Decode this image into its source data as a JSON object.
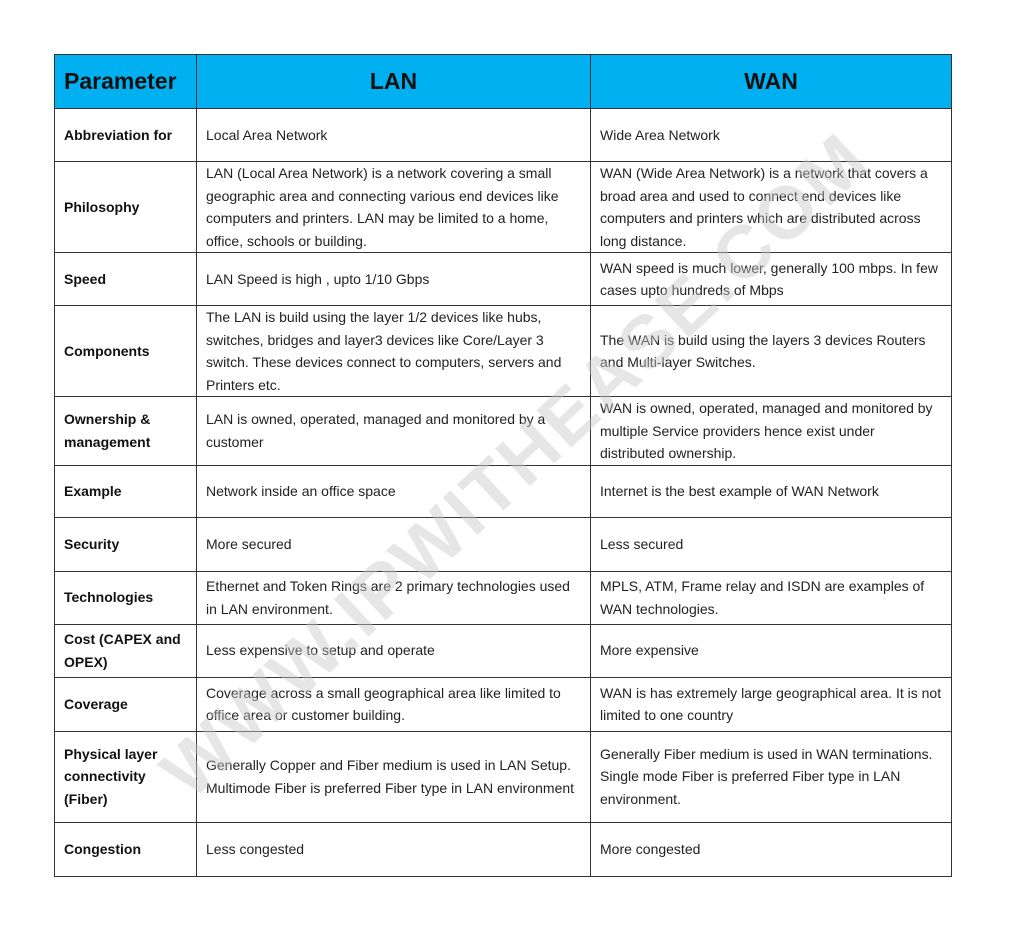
{
  "watermark": "WWW.IPWITHEASE.COM",
  "header": {
    "col0": "Parameter",
    "col1": "LAN",
    "col2": "WAN"
  },
  "colors": {
    "header_bg": "#00b0f0",
    "border": "#333333"
  },
  "rows": [
    {
      "param": "Abbreviation for",
      "lan": "Local Area Network",
      "wan": "Wide Area Network"
    },
    {
      "param": "Philosophy",
      "lan": "LAN (Local Area Network) is a network covering a small geographic area and connecting various end devices like computers and printers. LAN may be limited to a home, office, schools or building.",
      "wan": "WAN (Wide Area Network) is a network that covers a broad area and used to connect end devices like computers and printers which are distributed across long distance."
    },
    {
      "param": "Speed",
      "lan": "LAN Speed is high , upto 1/10 Gbps",
      "wan": "WAN speed is much lower, generally 100 mbps. In few cases upto hundreds of Mbps"
    },
    {
      "param": "Components",
      "lan": "The LAN is build using the layer 1/2 devices like hubs, switches, bridges and layer3 devices like Core/Layer 3 switch. These devices connect to computers, servers and Printers etc.",
      "wan": "The WAN is build using the layers 3 devices Routers and Multi-layer Switches."
    },
    {
      "param": "Ownership & management",
      "lan": "LAN is owned, operated, managed and monitored by a customer",
      "wan": "WAN is owned, operated, managed and monitored by multiple Service providers hence exist under distributed ownership."
    },
    {
      "param": "Example",
      "lan": "Network inside an office space",
      "wan": "Internet is the best example of WAN Network"
    },
    {
      "param": "Security",
      "lan": "More secured",
      "wan": "Less secured"
    },
    {
      "param": "Technologies",
      "lan": "Ethernet and Token Rings are 2 primary technologies used in LAN environment.",
      "wan": "MPLS, ATM, Frame relay and ISDN are examples of WAN technologies."
    },
    {
      "param": "Cost (CAPEX and OPEX)",
      "lan": "Less expensive to setup and operate",
      "wan": "More expensive"
    },
    {
      "param": "Coverage",
      "lan": "Coverage across a small geographical area like limited to office area or customer building.",
      "wan": "WAN is has extremely large geographical area. It is not limited to one country"
    },
    {
      "param": "Physical layer connectivity (Fiber)",
      "lan": "Generally Copper and Fiber medium is used in LAN Setup.\nMultimode Fiber is preferred Fiber type in LAN environment",
      "wan": "Generally Fiber medium is used in WAN terminations.\nSingle mode Fiber is preferred Fiber type in LAN environment."
    },
    {
      "param": "Congestion",
      "lan": "Less congested",
      "wan": "More congested"
    }
  ]
}
